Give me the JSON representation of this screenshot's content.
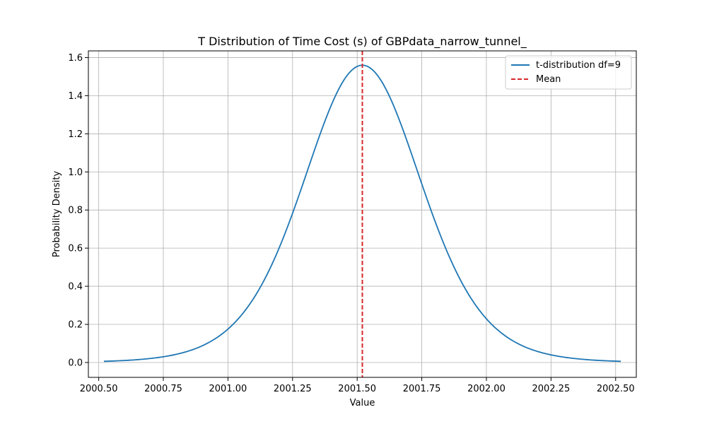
{
  "chart_data": {
    "type": "line",
    "title": "T Distribution of Time Cost (s) of GBPdata_narrow_tunnel_",
    "xlabel": "Value",
    "ylabel": "Probability Density",
    "xlim": [
      2000.46,
      2002.58
    ],
    "ylim": [
      -0.078,
      1.635
    ],
    "xticks": [
      2000.5,
      2000.75,
      2001.0,
      2001.25,
      2001.5,
      2001.75,
      2002.0,
      2002.25,
      2002.5
    ],
    "xtick_labels": [
      "2000.50",
      "2000.75",
      "2001.00",
      "2001.25",
      "2001.50",
      "2001.75",
      "2002.00",
      "2002.25",
      "2002.50"
    ],
    "yticks": [
      0.0,
      0.2,
      0.4,
      0.6,
      0.8,
      1.0,
      1.2,
      1.4,
      1.6
    ],
    "ytick_labels": [
      "0.0",
      "0.2",
      "0.4",
      "0.6",
      "0.8",
      "1.0",
      "1.2",
      "1.4",
      "1.6"
    ],
    "grid": true,
    "legend_position": "top-right",
    "series": [
      {
        "name": "t-distribution df=9",
        "color": "#1f77b4",
        "style": "solid",
        "distribution": "student-t",
        "df": 9,
        "location": 2001.52,
        "scale": 0.234,
        "x_range": [
          2000.52,
          2002.52
        ],
        "peak_density": 1.56
      },
      {
        "name": "Mean",
        "color": "#d62728",
        "style": "dashed",
        "x": 2001.52
      }
    ]
  }
}
